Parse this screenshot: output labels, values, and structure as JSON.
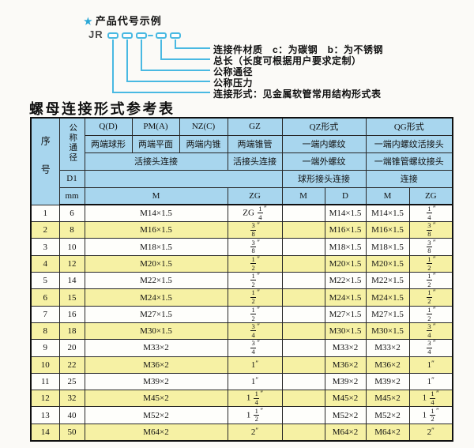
{
  "diagram": {
    "heading": "产品代号示例",
    "star": "★",
    "code_prefix": "JR",
    "labels": [
      "连接件材质　c：为碳钢　b：为不锈钢",
      "总长（长度可根据用户要求定制）",
      "公称通径",
      "公称压力",
      "连接形式：见金属软管常用结构形式表"
    ]
  },
  "title": "螺母连接形式参考表",
  "table": {
    "header": {
      "seq": "序号",
      "diameter": "公称通径",
      "d1": "D1",
      "mm": "mm",
      "col_q": "Q(D)",
      "col_q_desc": "两端球形",
      "col_pm": "PM(A)",
      "col_pm_desc": "两端平面",
      "col_nz": "NZ(C)",
      "col_nz_desc": "两端内锥",
      "col_gz": "GZ",
      "col_gz_desc": "两端锥管",
      "col_qz": "QZ形式",
      "col_qz_desc1": "一端内螺纹",
      "col_qz_desc2": "一端外螺纹",
      "col_qz_desc3": "球形接头连接",
      "col_qg": "QG形式",
      "col_qg_desc1": "一端内螺纹活接头",
      "col_qg_desc2": "一端锥管螺纹接头",
      "col_qg_desc3": "连接",
      "union_join": "活接头连接",
      "blank": "",
      "m": "M",
      "d": "D",
      "zg": "ZG"
    },
    "rows": [
      [
        "1",
        "6",
        "M14×1.5",
        "ZG 1/4″",
        "",
        "M14×1.5",
        "M14×1.5",
        "1/4″"
      ],
      [
        "2",
        "8",
        "M16×1.5",
        "3/8″",
        "",
        "M16×1.5",
        "M16×1.5",
        "3/8″"
      ],
      [
        "3",
        "10",
        "M18×1.5",
        "3/8″",
        "",
        "M18×1.5",
        "M18×1.5",
        "3/8″"
      ],
      [
        "4",
        "12",
        "M20×1.5",
        "1/2″",
        "",
        "M20×1.5",
        "M20×1.5",
        "1/2″"
      ],
      [
        "5",
        "14",
        "M22×1.5",
        "1/2″",
        "",
        "M22×1.5",
        "M22×1.5",
        "1/2″"
      ],
      [
        "6",
        "15",
        "M24×1.5",
        "1/2″",
        "",
        "M24×1.5",
        "M24×1.5",
        "1/2″"
      ],
      [
        "7",
        "16",
        "M27×1.5",
        "1/2″",
        "",
        "M27×1.5",
        "M27×1.5",
        "1/2″"
      ],
      [
        "8",
        "18",
        "M30×1.5",
        "3/4″",
        "",
        "M30×1.5",
        "M30×1.5",
        "3/4″"
      ],
      [
        "9",
        "20",
        "M33×2",
        "3/4″",
        "",
        "M33×2",
        "M33×2",
        "3/4″"
      ],
      [
        "10",
        "22",
        "M36×2",
        "1″",
        "",
        "M36×2",
        "M36×2",
        "1″"
      ],
      [
        "11",
        "25",
        "M39×2",
        "1″",
        "",
        "M39×2",
        "M39×2",
        "1″"
      ],
      [
        "12",
        "32",
        "M45×2",
        "1 1/4″",
        "",
        "M45×2",
        "M45×2",
        "1 1/4″"
      ],
      [
        "13",
        "40",
        "M52×2",
        "1 1/2″",
        "",
        "M52×2",
        "M52×2",
        "1 1/2″"
      ],
      [
        "14",
        "50",
        "M64×2",
        "2″",
        "",
        "M64×2",
        "M64×2",
        "2″"
      ]
    ]
  },
  "colors": {
    "accent_cyan": "#49b9e2",
    "header_blue": "#a8d6ee",
    "row_yellow": "#f6f1a4",
    "border_dark": "#101010"
  }
}
